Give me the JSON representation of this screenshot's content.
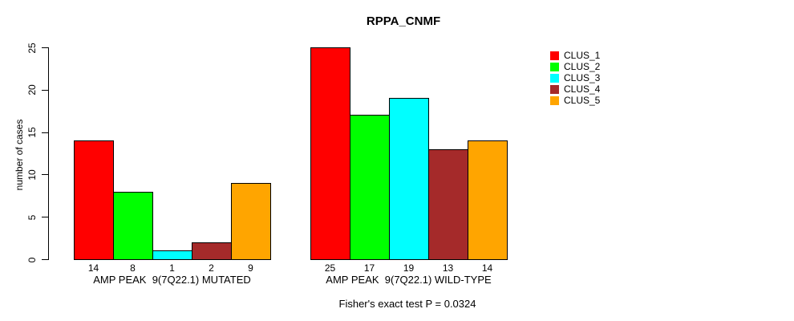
{
  "chart_data": {
    "type": "bar",
    "title": "RPPA_CNMF",
    "ylabel": "number of cases",
    "ylim": [
      0,
      25
    ],
    "yticks": [
      0,
      5,
      10,
      15,
      20,
      25
    ],
    "grid": false,
    "legend_position": "right",
    "bar_value_labels": true,
    "categories": [
      "AMP PEAK  9(7Q22.1) MUTATED",
      "AMP PEAK  9(7Q22.1) WILD-TYPE"
    ],
    "series": [
      {
        "name": "CLUS_1",
        "color": "#FF0000",
        "values": [
          14,
          25
        ]
      },
      {
        "name": "CLUS_2",
        "color": "#00FF00",
        "values": [
          8,
          17
        ]
      },
      {
        "name": "CLUS_3",
        "color": "#00FFFF",
        "values": [
          1,
          19
        ]
      },
      {
        "name": "CLUS_4",
        "color": "#A52A2A",
        "values": [
          2,
          13
        ]
      },
      {
        "name": "CLUS_5",
        "color": "#FFA500",
        "values": [
          9,
          14
        ]
      }
    ],
    "annotation": "Fisher's exact test P = 0.0324"
  },
  "style": {
    "background": "#FFFFFF",
    "axis_color": "#000000",
    "text_color": "#000000"
  }
}
